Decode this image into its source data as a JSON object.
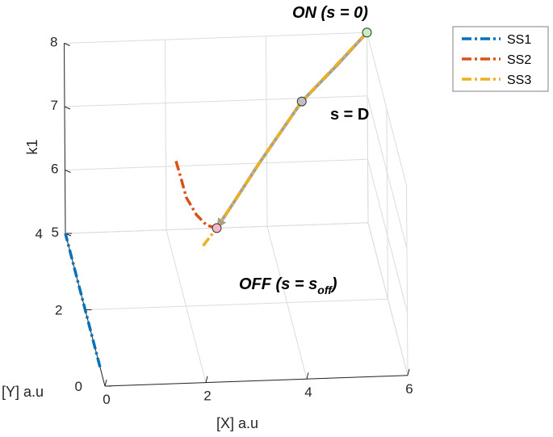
{
  "chart_data": {
    "type": "line3d",
    "xlabel": "[X] a.u",
    "ylabel": "[Y] a.u",
    "zlabel": "k1",
    "xlim": [
      0,
      6
    ],
    "ylim": [
      0,
      4
    ],
    "zlim": [
      5,
      8
    ],
    "x_ticks": [
      "0",
      "2",
      "4",
      "6"
    ],
    "y_ticks": [
      "0",
      "2",
      "4"
    ],
    "z_ticks": [
      "5",
      "6",
      "7",
      "8"
    ],
    "grid": true,
    "legend_position": "top-right",
    "series": [
      {
        "name": "SS1",
        "color": "#0072BD",
        "style": "dash-dot",
        "points": [
          [
            0,
            0.5,
            5
          ],
          [
            0,
            4.0,
            5
          ]
        ]
      },
      {
        "name": "SS2",
        "color": "#D95319",
        "style": "dash-dot",
        "points": [
          [
            2.2,
            4,
            6.08
          ],
          [
            2.3,
            4,
            5.8
          ],
          [
            2.4,
            4,
            5.5
          ],
          [
            2.6,
            4,
            5.22
          ],
          [
            2.8,
            4,
            5.05
          ],
          [
            3.0,
            4,
            5.0
          ]
        ]
      },
      {
        "name": "SS3",
        "color": "#EDB120",
        "style": "dash-dot",
        "points": [
          [
            6,
            4,
            8
          ],
          [
            4.7,
            4,
            6.95
          ],
          [
            3.85,
            4,
            6.0
          ],
          [
            3.0,
            4,
            5.0
          ],
          [
            2.6,
            3.5,
            5.0
          ]
        ]
      }
    ],
    "trajectory": {
      "color": "#A0A0A0",
      "points": [
        [
          6,
          4,
          8
        ],
        [
          5.4,
          4,
          7.5
        ],
        [
          4.7,
          4,
          6.95
        ],
        [
          3.85,
          4,
          6.0
        ],
        [
          3.3,
          4,
          5.35
        ],
        [
          3.0,
          4,
          5.0
        ]
      ]
    },
    "markers": [
      {
        "name": "on-point",
        "point": [
          6,
          4,
          8
        ],
        "fill": "#c6efc0"
      },
      {
        "name": "d-point",
        "point": [
          4.7,
          4,
          6.95
        ],
        "fill": "#c0c0c0"
      },
      {
        "name": "off-point",
        "point": [
          3.0,
          4,
          5.0
        ],
        "fill": "#f6b9c3"
      }
    ],
    "annotations": {
      "on_main": "ON",
      "on_rest": " (s = 0)",
      "d_label": "s = D",
      "off_main": "OFF",
      "off_mid": " (s = s",
      "off_sub": "off",
      "off_close": ")"
    }
  }
}
